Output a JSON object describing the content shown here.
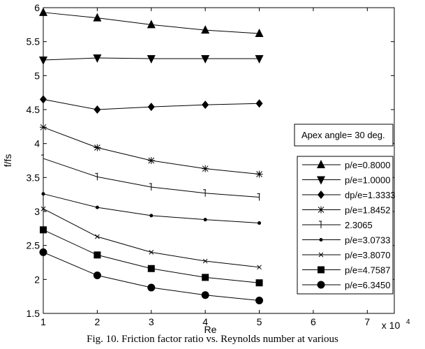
{
  "caption": "Fig. 10. Friction factor ratio vs. Reynolds number at various",
  "chart_data": {
    "type": "line",
    "title": "",
    "xlabel": "Re",
    "ylabel": "f/fs",
    "x_multiplier_label": "x 10",
    "x_multiplier_exponent": "4",
    "xlim": [
      1,
      7.5
    ],
    "ylim": [
      1.5,
      6
    ],
    "xticks": [
      1,
      2,
      3,
      4,
      5,
      6,
      7
    ],
    "yticks": [
      1.5,
      2,
      2.5,
      3,
      3.5,
      4,
      4.5,
      5,
      5.5,
      6
    ],
    "x": [
      1,
      2,
      3,
      4,
      5
    ],
    "annotation": "Apex angle= 30 deg.",
    "legend_position": "right",
    "series": [
      {
        "name": "p/e=0.8000",
        "marker": "triangle-up",
        "values": [
          5.93,
          5.85,
          5.75,
          5.67,
          5.62
        ]
      },
      {
        "name": "p/e=1.0000",
        "marker": "triangle-down",
        "values": [
          5.23,
          5.26,
          5.25,
          5.25,
          5.25
        ]
      },
      {
        "name": "dp/e=1.3333",
        "marker": "diamond",
        "values": [
          4.65,
          4.5,
          4.54,
          4.57,
          4.59
        ]
      },
      {
        "name": "p/e=1.8452",
        "marker": "star",
        "values": [
          4.24,
          3.94,
          3.75,
          3.63,
          3.55
        ]
      },
      {
        "name": "2.3065",
        "marker": "tick",
        "values": [
          3.78,
          3.51,
          3.36,
          3.27,
          3.21
        ]
      },
      {
        "name": "p/e=3.0733",
        "marker": "dot",
        "values": [
          3.26,
          3.06,
          2.94,
          2.88,
          2.83
        ]
      },
      {
        "name": "p/e=3.8070",
        "marker": "x",
        "values": [
          3.04,
          2.63,
          2.4,
          2.27,
          2.18
        ]
      },
      {
        "name": "p/e=4.7587",
        "marker": "square",
        "values": [
          2.73,
          2.36,
          2.16,
          2.03,
          1.95
        ]
      },
      {
        "name": "p/e=6.3450",
        "marker": "circle",
        "values": [
          2.4,
          2.06,
          1.88,
          1.77,
          1.69
        ]
      }
    ]
  }
}
